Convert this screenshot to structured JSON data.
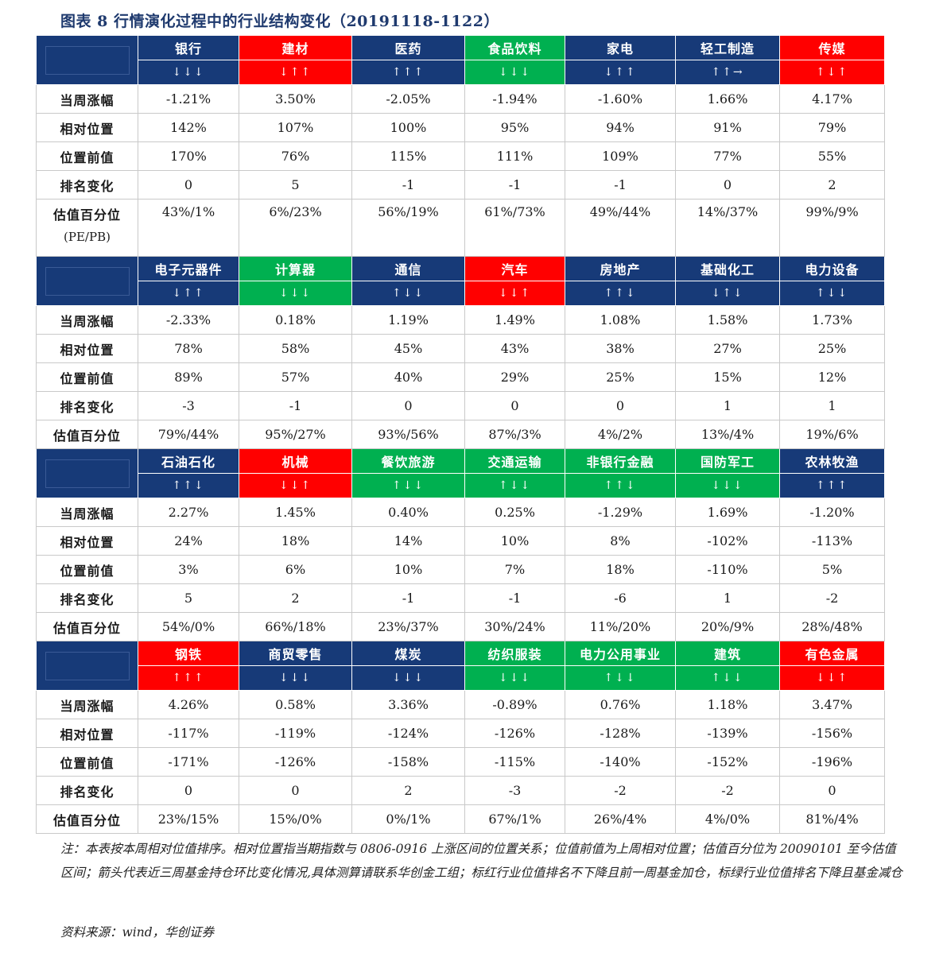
{
  "title": "图表 8   行情演化过程中的行业结构变化（20191118-1122）",
  "row_labels": [
    "当周涨幅",
    "相对位置",
    "位置前值",
    "排名变化",
    "估值百分位"
  ],
  "row_label_extra": "(PE/PB)",
  "blocks": [
    {
      "industries": [
        {
          "name": "银行",
          "arrows": "↓↓↓",
          "color": "blue"
        },
        {
          "name": "建材",
          "arrows": "↓↑↑",
          "color": "red"
        },
        {
          "name": "医药",
          "arrows": "↑↑↑",
          "color": "blue"
        },
        {
          "name": "食品饮料",
          "arrows": "↓↓↓",
          "color": "green"
        },
        {
          "name": "家电",
          "arrows": "↓↑↑",
          "color": "blue"
        },
        {
          "name": "轻工制造",
          "arrows": "↑↑→",
          "color": "blue"
        },
        {
          "name": "传媒",
          "arrows": "↑↓↑",
          "color": "red"
        }
      ],
      "rows": [
        [
          "-1.21%",
          "3.50%",
          "-2.05%",
          "-1.94%",
          "-1.60%",
          "1.66%",
          "4.17%"
        ],
        [
          "142%",
          "107%",
          "100%",
          "95%",
          "94%",
          "91%",
          "79%"
        ],
        [
          "170%",
          "76%",
          "115%",
          "111%",
          "109%",
          "77%",
          "55%"
        ],
        [
          "0",
          "5",
          "-1",
          "-1",
          "-1",
          "0",
          "2"
        ],
        [
          "43%/1%",
          "6%/23%",
          "56%/19%",
          "61%/73%",
          "49%/44%",
          "14%/37%",
          "99%/9%"
        ]
      ]
    },
    {
      "industries": [
        {
          "name": "电子元器件",
          "arrows": "↓↑↑",
          "color": "blue"
        },
        {
          "name": "计算器",
          "arrows": "↓↓↓",
          "color": "green"
        },
        {
          "name": "通信",
          "arrows": "↑↓↓",
          "color": "blue"
        },
        {
          "name": "汽车",
          "arrows": "↓↓↑",
          "color": "red"
        },
        {
          "name": "房地产",
          "arrows": "↑↑↓",
          "color": "blue"
        },
        {
          "name": "基础化工",
          "arrows": "↓↑↓",
          "color": "blue"
        },
        {
          "name": "电力设备",
          "arrows": "↑↓↓",
          "color": "blue"
        }
      ],
      "rows": [
        [
          "-2.33%",
          "0.18%",
          "1.19%",
          "1.49%",
          "1.08%",
          "1.58%",
          "1.73%"
        ],
        [
          "78%",
          "58%",
          "45%",
          "43%",
          "38%",
          "27%",
          "25%"
        ],
        [
          "89%",
          "57%",
          "40%",
          "29%",
          "25%",
          "15%",
          "12%"
        ],
        [
          "-3",
          "-1",
          "0",
          "0",
          "0",
          "1",
          "1"
        ],
        [
          "79%/44%",
          "95%/27%",
          "93%/56%",
          "87%/3%",
          "4%/2%",
          "13%/4%",
          "19%/6%"
        ]
      ]
    },
    {
      "industries": [
        {
          "name": "石油石化",
          "arrows": "↑↑↓",
          "color": "blue"
        },
        {
          "name": "机械",
          "arrows": "↓↓↑",
          "color": "red"
        },
        {
          "name": "餐饮旅游",
          "arrows": "↑↓↓",
          "color": "green"
        },
        {
          "name": "交通运输",
          "arrows": "↑↓↓",
          "color": "green"
        },
        {
          "name": "非银行金融",
          "arrows": "↑↑↓",
          "color": "green"
        },
        {
          "name": "国防军工",
          "arrows": "↓↓↓",
          "color": "green"
        },
        {
          "name": "农林牧渔",
          "arrows": "↑↑↑",
          "color": "blue"
        }
      ],
      "rows": [
        [
          "2.27%",
          "1.45%",
          "0.40%",
          "0.25%",
          "-1.29%",
          "1.69%",
          "-1.20%"
        ],
        [
          "24%",
          "18%",
          "14%",
          "10%",
          "8%",
          "-102%",
          "-113%"
        ],
        [
          "3%",
          "6%",
          "10%",
          "7%",
          "18%",
          "-110%",
          "5%"
        ],
        [
          "5",
          "2",
          "-1",
          "-1",
          "-6",
          "1",
          "-2"
        ],
        [
          "54%/0%",
          "66%/18%",
          "23%/37%",
          "30%/24%",
          "11%/20%",
          "20%/9%",
          "28%/48%"
        ]
      ]
    },
    {
      "industries": [
        {
          "name": "钢铁",
          "arrows": "↑↑↑",
          "color": "red"
        },
        {
          "name": "商贸零售",
          "arrows": "↓↓↓",
          "color": "blue"
        },
        {
          "name": "煤炭",
          "arrows": "↓↓↓",
          "color": "blue"
        },
        {
          "name": "纺织服装",
          "arrows": "↓↓↓",
          "color": "green"
        },
        {
          "name": "电力公用事业",
          "arrows": "↑↓↓",
          "color": "green"
        },
        {
          "name": "建筑",
          "arrows": "↑↓↓",
          "color": "green"
        },
        {
          "name": "有色金属",
          "arrows": "↓↓↑",
          "color": "red"
        }
      ],
      "rows": [
        [
          "4.26%",
          "0.58%",
          "3.36%",
          "-0.89%",
          "0.76%",
          "1.18%",
          "3.47%"
        ],
        [
          "-117%",
          "-119%",
          "-124%",
          "-126%",
          "-128%",
          "-139%",
          "-156%"
        ],
        [
          "-171%",
          "-126%",
          "-158%",
          "-115%",
          "-140%",
          "-152%",
          "-196%"
        ],
        [
          "0",
          "0",
          "2",
          "-3",
          "-2",
          "-2",
          "0"
        ],
        [
          "23%/15%",
          "15%/0%",
          "0%/1%",
          "67%/1%",
          "26%/4%",
          "4%/0%",
          "81%/4%"
        ]
      ]
    }
  ],
  "note": "注：本表按本周相对位值排序。相对位置指当期指数与 0806-0916 上涨区间的位置关系；位值前值为上周相对位置；估值百分位为 20090101 至今估值区间；箭头代表近三周基金持仓环比变化情况,具体测算请联系华创金工组；标红行业位值排名不下降且前一周基金加仓，标绿行业位值排名下降且基金减仓",
  "source": "资料来源：wind，华创证券",
  "colors": {
    "red": "#ff0000",
    "green": "#00b050",
    "blue": "#173a78"
  }
}
